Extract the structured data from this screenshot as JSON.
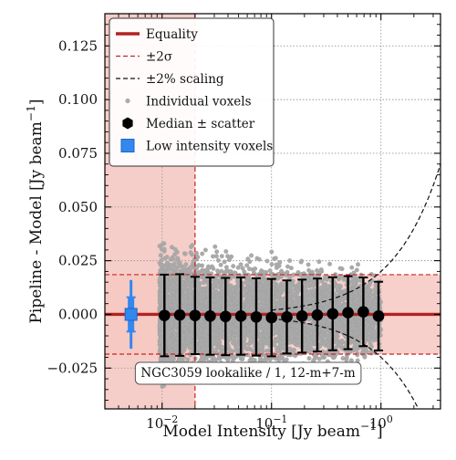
{
  "chart_data": {
    "type": "scatter",
    "xlabel": "Model Intensity [Jy beam$^{-1}$]",
    "ylabel": "Pipeline - Model [Jy beam$^{-1}$]",
    "xscale": "log",
    "xlim": [
      0.003,
      3.5
    ],
    "ylim": [
      -0.044,
      0.14
    ],
    "x_ticks": [
      0.01,
      0.1,
      1
    ],
    "x_tick_labels": [
      "10$^{-2}$",
      "10$^{-1}$",
      "10$^{0}$"
    ],
    "y_ticks": [
      -0.025,
      0.0,
      0.025,
      0.05,
      0.075,
      0.1,
      0.125
    ],
    "y_tick_labels": [
      "−0.025",
      "0.000",
      "0.025",
      "0.050",
      "0.075",
      "0.100",
      "0.125"
    ],
    "grid": true,
    "legend_position": "top-left",
    "legend": [
      {
        "key": "equality",
        "label": "Equality",
        "color": "#b22222"
      },
      {
        "key": "sigma",
        "label": "±2σ",
        "color": "#cc2222"
      },
      {
        "key": "scaling",
        "label": "±2% scaling",
        "color": "#111111"
      },
      {
        "key": "voxels",
        "label": "Individual voxels",
        "color": "#aaaaaa"
      },
      {
        "key": "median",
        "label": "Median ± scatter",
        "color": "#000000"
      },
      {
        "key": "low",
        "label": "Low intensity voxels",
        "color": "#3388ee"
      }
    ],
    "equality_y": 0.0,
    "sigma_band": [
      -0.0185,
      0.0185
    ],
    "scaling_fraction": 0.02,
    "low_intensity_threshold": 0.02,
    "voxel_cloud": {
      "x_range": [
        0.0095,
        1.0
      ],
      "y_extent_by_x": [
        [
          0.0095,
          0.034
        ],
        [
          0.1,
          0.03
        ],
        [
          0.3,
          0.026
        ],
        [
          0.6,
          0.024
        ],
        [
          1.0,
          0.02
        ]
      ]
    },
    "median_points": [
      {
        "x": 0.0105,
        "y": -0.0005,
        "err": 0.019
      },
      {
        "x": 0.0145,
        "y": -0.0003,
        "err": 0.019
      },
      {
        "x": 0.02,
        "y": -0.0005,
        "err": 0.018
      },
      {
        "x": 0.0275,
        "y": -0.0008,
        "err": 0.018
      },
      {
        "x": 0.038,
        "y": -0.001,
        "err": 0.018
      },
      {
        "x": 0.0525,
        "y": -0.0008,
        "err": 0.018
      },
      {
        "x": 0.0725,
        "y": -0.0012,
        "err": 0.018
      },
      {
        "x": 0.1,
        "y": -0.0015,
        "err": 0.018
      },
      {
        "x": 0.138,
        "y": -0.0012,
        "err": 0.017
      },
      {
        "x": 0.19,
        "y": -0.0008,
        "err": 0.017
      },
      {
        "x": 0.262,
        "y": -0.0003,
        "err": 0.017
      },
      {
        "x": 0.362,
        "y": 0.0003,
        "err": 0.017
      },
      {
        "x": 0.5,
        "y": 0.0008,
        "err": 0.017
      },
      {
        "x": 0.69,
        "y": 0.0012,
        "err": 0.016
      },
      {
        "x": 0.95,
        "y": -0.0008,
        "err": 0.016
      }
    ],
    "low_intensity_point": {
      "x": 0.0052,
      "y": 0.0,
      "err": 0.016,
      "inner_err": 0.008
    },
    "annotation": "NGC3059 lookalike / 1, 12-m+7-m"
  }
}
